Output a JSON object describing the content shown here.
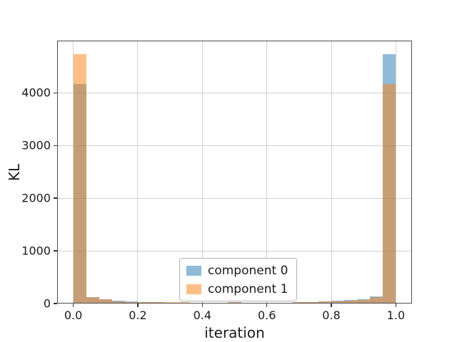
{
  "figure": {
    "background": "#ffffff"
  },
  "axes": {
    "xlabel": "iteration",
    "ylabel": "KL",
    "xlim": [
      -0.05,
      1.05
    ],
    "ylim": [
      0,
      4990
    ],
    "xticks": {
      "values": [
        0.0,
        0.2,
        0.4,
        0.6,
        0.8,
        1.0
      ],
      "labels": [
        "0.0",
        "0.2",
        "0.4",
        "0.6",
        "0.8",
        "1.0"
      ]
    },
    "yticks": {
      "values": [
        0,
        1000,
        2000,
        3000,
        4000
      ],
      "labels": [
        "0",
        "1000",
        "2000",
        "3000",
        "4000"
      ]
    },
    "grid": true,
    "grid_color": "#d0d0d0",
    "spine_color": "#4d4d4d",
    "tick_color": "#333333"
  },
  "chart_data": {
    "type": "bar",
    "subtype": "overlapping-histogram",
    "title": "",
    "xlabel": "iteration",
    "ylabel": "KL",
    "xlim": [
      -0.05,
      1.05
    ],
    "ylim": [
      0,
      4990
    ],
    "grid": true,
    "legend_position": "lower center, inside axes",
    "bin_start": 0.0,
    "bin_width": 0.04,
    "n_bins": 25,
    "bin_edges": [
      0.0,
      0.04,
      0.08,
      0.12,
      0.16,
      0.2,
      0.24,
      0.28,
      0.32,
      0.36,
      0.4,
      0.44,
      0.48,
      0.52,
      0.56,
      0.6,
      0.64,
      0.68,
      0.72,
      0.76,
      0.8,
      0.84,
      0.88,
      0.92,
      0.96,
      1.0
    ],
    "series": [
      {
        "name": "component 0",
        "color": "#1f77b4",
        "alpha": 0.5,
        "values": [
          4160,
          120,
          78,
          58,
          45,
          33,
          25,
          20,
          17,
          15,
          14,
          16,
          28,
          20,
          17,
          16,
          20,
          26,
          34,
          44,
          55,
          62,
          80,
          132,
          4730
        ]
      },
      {
        "name": "component 1",
        "color": "#ff7f0e",
        "alpha": 0.5,
        "values": [
          4730,
          126,
          85,
          42,
          33,
          26,
          22,
          27,
          24,
          17,
          14,
          18,
          30,
          18,
          15,
          14,
          17,
          22,
          28,
          36,
          46,
          55,
          70,
          126,
          4160
        ]
      }
    ]
  },
  "legend": {
    "items": [
      {
        "label": "component 0",
        "color": "#1f77b4",
        "alpha": 0.5
      },
      {
        "label": "component 1",
        "color": "#ff7f0e",
        "alpha": 0.5
      }
    ]
  }
}
